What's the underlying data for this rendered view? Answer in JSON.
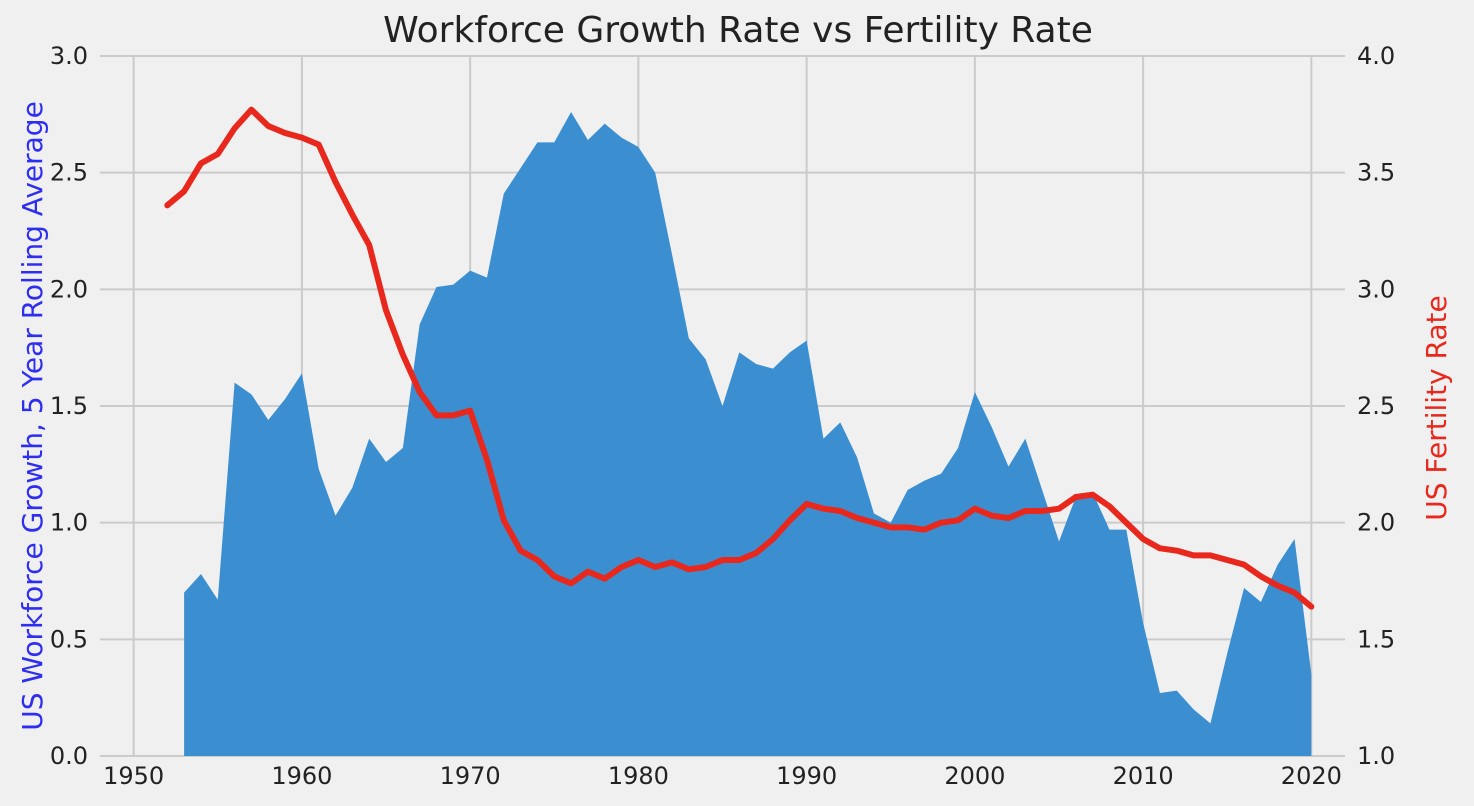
{
  "chart_data": {
    "type": "area",
    "title": "Workforce Growth Rate vs Fertility Rate",
    "xlabel": "",
    "x_ticks": [
      1950,
      1960,
      1970,
      1980,
      1990,
      2000,
      2010,
      2020
    ],
    "xlim": [
      1948,
      2022
    ],
    "grid": true,
    "left_axis": {
      "label": "US Workforce Growth, 5 Year Rolling Average",
      "ylim": [
        0,
        3
      ],
      "ticks": [
        "0.0",
        "0.5",
        "1.0",
        "1.5",
        "2.0",
        "2.5",
        "3.0"
      ],
      "color": "#2e2ef0"
    },
    "right_axis": {
      "label": "US Fertility Rate",
      "ylim": [
        1,
        4
      ],
      "ticks": [
        "1.0",
        "1.5",
        "2.0",
        "2.5",
        "3.0",
        "3.5",
        "4.0"
      ],
      "color": "#e8281c"
    },
    "series": [
      {
        "type": "area",
        "axis": "left",
        "color": "#3b8fd0",
        "points": [
          [
            1953,
            0.7
          ],
          [
            1954,
            0.78
          ],
          [
            1955,
            0.67
          ],
          [
            1956,
            1.6
          ],
          [
            1957,
            1.55
          ],
          [
            1958,
            1.44
          ],
          [
            1959,
            1.53
          ],
          [
            1960,
            1.64
          ],
          [
            1961,
            1.23
          ],
          [
            1962,
            1.03
          ],
          [
            1963,
            1.15
          ],
          [
            1964,
            1.36
          ],
          [
            1965,
            1.26
          ],
          [
            1966,
            1.32
          ],
          [
            1967,
            1.85
          ],
          [
            1968,
            2.01
          ],
          [
            1969,
            2.02
          ],
          [
            1970,
            2.08
          ],
          [
            1971,
            2.05
          ],
          [
            1972,
            2.41
          ],
          [
            1973,
            2.52
          ],
          [
            1974,
            2.63
          ],
          [
            1975,
            2.63
          ],
          [
            1976,
            2.76
          ],
          [
            1977,
            2.64
          ],
          [
            1978,
            2.71
          ],
          [
            1979,
            2.65
          ],
          [
            1980,
            2.61
          ],
          [
            1981,
            2.5
          ],
          [
            1982,
            2.15
          ],
          [
            1983,
            1.79
          ],
          [
            1984,
            1.7
          ],
          [
            1985,
            1.5
          ],
          [
            1986,
            1.73
          ],
          [
            1987,
            1.68
          ],
          [
            1988,
            1.66
          ],
          [
            1989,
            1.73
          ],
          [
            1990,
            1.78
          ],
          [
            1991,
            1.36
          ],
          [
            1992,
            1.43
          ],
          [
            1993,
            1.28
          ],
          [
            1994,
            1.04
          ],
          [
            1995,
            1.0
          ],
          [
            1996,
            1.14
          ],
          [
            1997,
            1.18
          ],
          [
            1998,
            1.21
          ],
          [
            1999,
            1.32
          ],
          [
            2000,
            1.56
          ],
          [
            2001,
            1.41
          ],
          [
            2002,
            1.24
          ],
          [
            2003,
            1.36
          ],
          [
            2004,
            1.14
          ],
          [
            2005,
            0.92
          ],
          [
            2006,
            1.11
          ],
          [
            2007,
            1.13
          ],
          [
            2008,
            0.97
          ],
          [
            2009,
            0.97
          ],
          [
            2010,
            0.57
          ],
          [
            2011,
            0.27
          ],
          [
            2012,
            0.28
          ],
          [
            2013,
            0.2
          ],
          [
            2014,
            0.14
          ],
          [
            2015,
            0.44
          ],
          [
            2016,
            0.72
          ],
          [
            2017,
            0.66
          ],
          [
            2018,
            0.82
          ],
          [
            2019,
            0.93
          ],
          [
            2020,
            0.35
          ]
        ]
      },
      {
        "type": "line",
        "axis": "right",
        "color": "#e8281c",
        "points": [
          [
            1952,
            3.36
          ],
          [
            1953,
            3.42
          ],
          [
            1954,
            3.54
          ],
          [
            1955,
            3.58
          ],
          [
            1956,
            3.69
          ],
          [
            1957,
            3.77
          ],
          [
            1958,
            3.7
          ],
          [
            1959,
            3.67
          ],
          [
            1960,
            3.65
          ],
          [
            1961,
            3.62
          ],
          [
            1962,
            3.46
          ],
          [
            1963,
            3.32
          ],
          [
            1964,
            3.19
          ],
          [
            1965,
            2.91
          ],
          [
            1966,
            2.72
          ],
          [
            1967,
            2.56
          ],
          [
            1968,
            2.46
          ],
          [
            1969,
            2.46
          ],
          [
            1970,
            2.48
          ],
          [
            1971,
            2.27
          ],
          [
            1972,
            2.01
          ],
          [
            1973,
            1.88
          ],
          [
            1974,
            1.84
          ],
          [
            1975,
            1.77
          ],
          [
            1976,
            1.74
          ],
          [
            1977,
            1.79
          ],
          [
            1978,
            1.76
          ],
          [
            1979,
            1.81
          ],
          [
            1980,
            1.84
          ],
          [
            1981,
            1.81
          ],
          [
            1982,
            1.83
          ],
          [
            1983,
            1.8
          ],
          [
            1984,
            1.81
          ],
          [
            1985,
            1.84
          ],
          [
            1986,
            1.84
          ],
          [
            1987,
            1.87
          ],
          [
            1988,
            1.93
          ],
          [
            1989,
            2.01
          ],
          [
            1990,
            2.08
          ],
          [
            1991,
            2.06
          ],
          [
            1992,
            2.05
          ],
          [
            1993,
            2.02
          ],
          [
            1994,
            2.0
          ],
          [
            1995,
            1.98
          ],
          [
            1996,
            1.98
          ],
          [
            1997,
            1.97
          ],
          [
            1998,
            2.0
          ],
          [
            1999,
            2.01
          ],
          [
            2000,
            2.06
          ],
          [
            2001,
            2.03
          ],
          [
            2002,
            2.02
          ],
          [
            2003,
            2.05
          ],
          [
            2004,
            2.05
          ],
          [
            2005,
            2.06
          ],
          [
            2006,
            2.11
          ],
          [
            2007,
            2.12
          ],
          [
            2008,
            2.07
          ],
          [
            2009,
            2.0
          ],
          [
            2010,
            1.93
          ],
          [
            2011,
            1.89
          ],
          [
            2012,
            1.88
          ],
          [
            2013,
            1.86
          ],
          [
            2014,
            1.86
          ],
          [
            2015,
            1.84
          ],
          [
            2016,
            1.82
          ],
          [
            2017,
            1.77
          ],
          [
            2018,
            1.73
          ],
          [
            2019,
            1.7
          ],
          [
            2020,
            1.64
          ]
        ]
      }
    ]
  }
}
